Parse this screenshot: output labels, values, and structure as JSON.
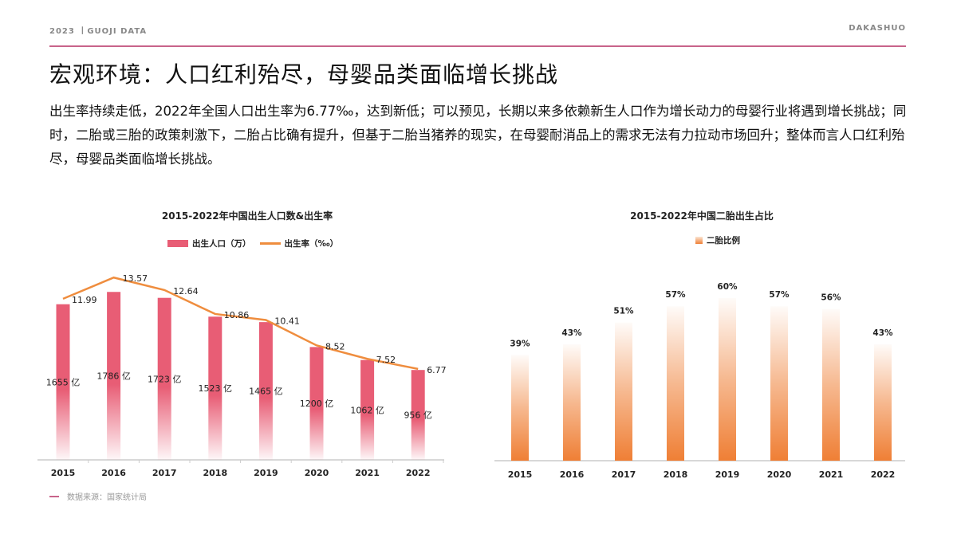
{
  "header": {
    "left": "2023 丨GUOJI DATA",
    "right": "DAKASHUO"
  },
  "title": "宏观环境：人口红利殆尽，母婴品类面临增长挑战",
  "body": "出生率持续走低，2022年全国人口出生率为6.77‰，达到新低；可以预见，长期以来多依赖新生人口作为增长动力的母婴行业将遇到增长挑战；同时，二胎或三胎的政策刺激下，二胎占比确有提升，但基于二胎当猪养的现实，在母婴耐消品上的需求无法有力拉动市场回升；整体而言人口红利殆尽，母婴品类面临增长挑战。",
  "source": "数据来源：国家统计局",
  "chart_data": [
    {
      "type": "bar+line",
      "title": "2015-2022年中国出生人口数&出生率",
      "categories": [
        "2015",
        "2016",
        "2017",
        "2018",
        "2019",
        "2020",
        "2021",
        "2022"
      ],
      "series": [
        {
          "name": "出生人口（万）",
          "type": "bar",
          "values": [
            1655,
            1786,
            1723,
            1523,
            1465,
            1200,
            1062,
            956
          ],
          "labels": [
            "1655 亿",
            "1786 亿",
            "1723 亿",
            "1523 亿",
            "1465 亿",
            "1200 亿",
            "1062 亿",
            "956 亿"
          ],
          "color": "#e85d75"
        },
        {
          "name": "出生率（‰）",
          "type": "line",
          "values": [
            11.99,
            13.57,
            12.64,
            10.86,
            10.41,
            8.52,
            7.52,
            6.77
          ],
          "labels": [
            "11.99",
            "13.57",
            "12.64",
            "10.86",
            "10.41",
            "8.52",
            "7.52",
            "6.77"
          ],
          "color": "#ef8d3e"
        }
      ],
      "ylim_bar": [
        0,
        2000
      ],
      "ylim_line": [
        0,
        14
      ],
      "legend": "top",
      "grid": false
    },
    {
      "type": "bar",
      "title": "2015-2022年中国二胎出生占比",
      "categories": [
        "2015",
        "2016",
        "2017",
        "2018",
        "2019",
        "2020",
        "2021",
        "2022"
      ],
      "series": [
        {
          "name": "二胎比例",
          "values": [
            39,
            43,
            51,
            57,
            60,
            57,
            56,
            43
          ],
          "labels": [
            "39%",
            "43%",
            "51%",
            "57%",
            "60%",
            "57%",
            "56%",
            "43%"
          ],
          "color": "#ef7f35"
        }
      ],
      "ylim": [
        0,
        70
      ],
      "legend": "top",
      "grid": false
    }
  ]
}
